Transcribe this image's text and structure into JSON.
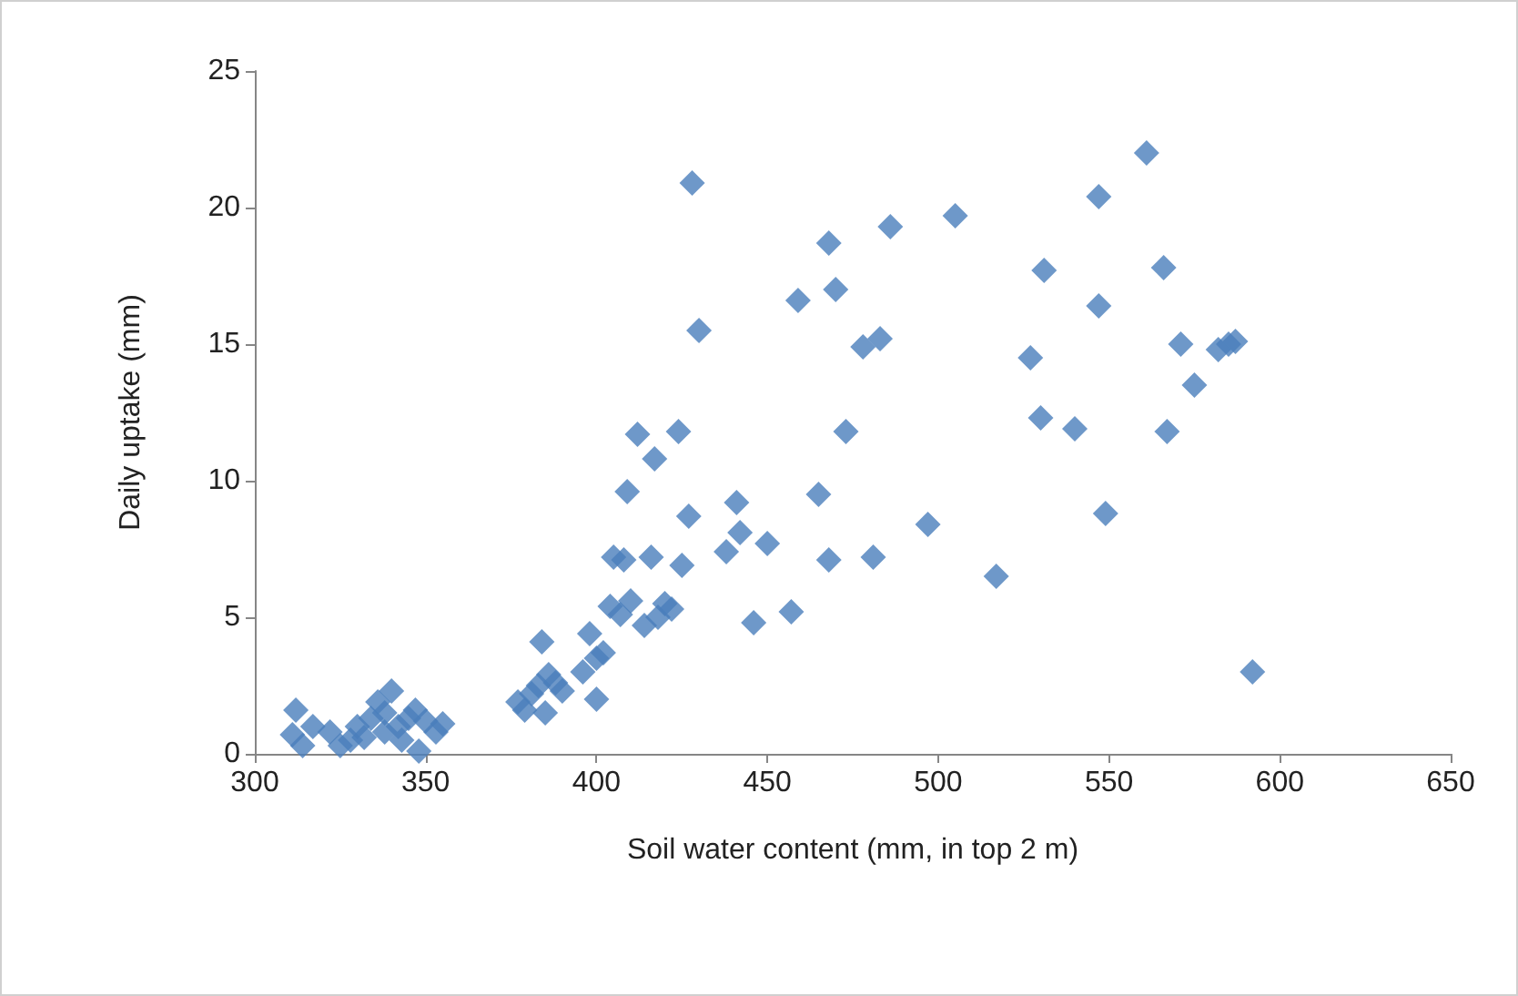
{
  "chart_data": {
    "type": "scatter",
    "xlabel": "Soil water content (mm, in top 2 m)",
    "ylabel": "Daily uptake (mm)",
    "xlim": [
      300,
      650
    ],
    "xticks": [
      300,
      350,
      400,
      450,
      500,
      550,
      600,
      650
    ],
    "ylim": [
      0,
      25
    ],
    "yticks": [
      0,
      5,
      10,
      15,
      20,
      25
    ],
    "grid": false,
    "marker": "diamond",
    "series": [
      {
        "color": "#4a7ebb",
        "x": [
          312,
          311,
          314,
          317,
          322,
          325,
          328,
          330,
          332,
          334,
          336,
          338,
          340,
          342,
          343,
          345,
          347,
          348,
          350,
          353,
          355,
          338,
          377,
          379,
          381,
          383,
          384,
          385,
          386,
          388,
          390,
          396,
          398,
          400,
          400,
          402,
          404,
          405,
          407,
          408,
          409,
          410,
          412,
          414,
          416,
          417,
          418,
          420,
          422,
          424,
          425,
          427,
          428,
          430,
          438,
          441,
          442,
          446,
          450,
          457,
          459,
          465,
          468,
          468,
          470,
          473,
          478,
          481,
          483,
          486,
          497,
          505,
          517,
          527,
          530,
          531,
          540,
          547,
          547,
          549,
          561,
          566,
          567,
          571,
          575,
          582,
          585,
          587,
          592
        ],
        "values": [
          1.6,
          0.7,
          0.3,
          1.0,
          0.8,
          0.3,
          0.5,
          1.0,
          0.6,
          1.3,
          1.9,
          1.5,
          2.3,
          1.0,
          0.5,
          1.3,
          1.6,
          0.1,
          1.2,
          0.8,
          1.1,
          0.8,
          1.9,
          1.6,
          2.2,
          2.5,
          4.1,
          1.5,
          2.9,
          2.6,
          2.3,
          3.0,
          4.4,
          2.0,
          3.5,
          3.7,
          5.4,
          7.2,
          5.1,
          7.1,
          9.6,
          5.6,
          11.7,
          4.7,
          7.2,
          10.8,
          5.0,
          5.5,
          5.3,
          11.8,
          6.9,
          8.7,
          20.9,
          15.5,
          7.4,
          9.2,
          8.1,
          4.8,
          7.7,
          5.2,
          16.6,
          9.5,
          18.7,
          7.1,
          17.0,
          11.8,
          14.9,
          7.2,
          15.2,
          19.3,
          8.4,
          19.7,
          6.5,
          14.5,
          12.3,
          17.7,
          11.9,
          20.4,
          16.4,
          8.8,
          22.0,
          17.8,
          11.8,
          15.0,
          13.5,
          14.8,
          15.0,
          15.1,
          3.0
        ]
      }
    ]
  }
}
